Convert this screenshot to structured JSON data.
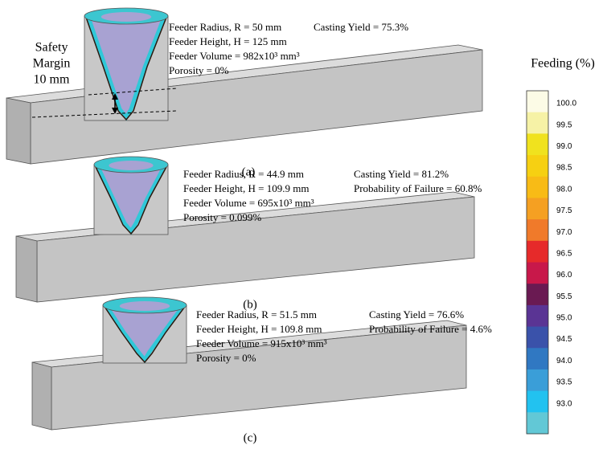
{
  "panels": [
    {
      "label": "(a)",
      "lines": [
        "Feeder Radius, R = 50 mm",
        "Feeder Height, H = 125 mm",
        "Feeder Volume  = 982x10³ mm³",
        "Porosity = 0%"
      ],
      "side": [
        "Casting Yield = 75.3%"
      ]
    },
    {
      "label": "(b)",
      "lines": [
        "Feeder Radius, R = 44.9 mm",
        "Feeder Height, H = 109.9 mm",
        "Feeder Volume  = 695x10³ mm³",
        "Porosity = 0.099%"
      ],
      "side": [
        "Casting Yield = 81.2%",
        "Probability of Failure = 60.8%"
      ]
    },
    {
      "label": "(c)",
      "lines": [
        "Feeder Radius, R = 51.5 mm",
        "Feeder Height, H = 109.8 mm",
        "Feeder Volume  = 915x10³ mm³",
        "Porosity = 0%"
      ],
      "side": [
        "Casting Yield = 76.6%",
        "Probability of Failure = 4.6%"
      ]
    }
  ],
  "safety_margin": [
    "Safety",
    "Margin",
    "10 mm"
  ],
  "colorbar": {
    "title": "Feeding (%)",
    "ticks": [
      "100.0",
      "99.5",
      "99.0",
      "98.5",
      "98.0",
      "97.5",
      "97.0",
      "96.5",
      "96.0",
      "95.5",
      "95.0",
      "94.5",
      "94.0",
      "93.5",
      "93.0"
    ],
    "colors": [
      "#fcfbe6",
      "#f6f2a6",
      "#f0e21e",
      "#f6d012",
      "#f8bb16",
      "#f5a022",
      "#f07a2a",
      "#e62a2a",
      "#c8184a",
      "#6a1a52",
      "#5a3494",
      "#3a52aa",
      "#3078c2",
      "#3a9ed8",
      "#22c2f0",
      "#62c8d6"
    ]
  }
}
